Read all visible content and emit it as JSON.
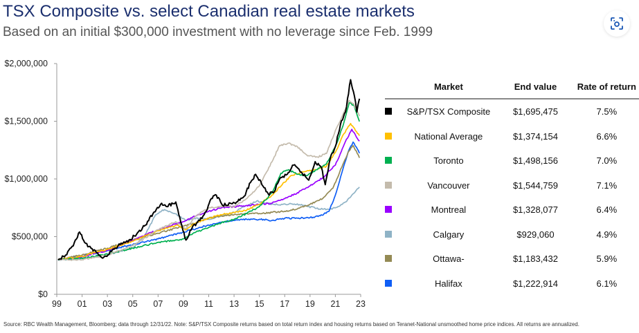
{
  "header": {
    "title": "TSX Composite vs. select Canadian real estate markets",
    "subtitle": "Based on an initial $300,000 investment with no leverage since Feb. 1999"
  },
  "lens_button": {
    "icon": "visual-search-icon"
  },
  "table": {
    "headers": [
      "Market",
      "End value",
      "Rate of return"
    ],
    "rows": [
      {
        "market": "S&P/TSX Composite",
        "end_value": "$1,695,475",
        "rate": "7.5%",
        "color": "#000000"
      },
      {
        "market": "National Average",
        "end_value": "$1,374,154",
        "rate": "6.6%",
        "color": "#ffc000"
      },
      {
        "market": "Toronto",
        "end_value": "$1,498,156",
        "rate": "7.0%",
        "color": "#00b050"
      },
      {
        "market": "Vancouver",
        "end_value": "$1,544,759",
        "rate": "7.1%",
        "color": "#c4bbac"
      },
      {
        "market": "Montreal",
        "end_value": "$1,328,077",
        "rate": "6.4%",
        "color": "#9900ff"
      },
      {
        "market": "Calgary",
        "end_value": "$929,060",
        "rate": "4.9%",
        "color": "#8fb3c6"
      },
      {
        "market": "Ottawa-",
        "end_value": "$1,183,432",
        "rate": "5.9%",
        "color": "#948a54"
      },
      {
        "market": "Halifax",
        "end_value": "$1,222,914",
        "rate": "6.1%",
        "color": "#0f5ef5"
      }
    ]
  },
  "footer": {
    "source": "Source: RBC Wealth Management, Bloomberg; data through 12/31/22. Note: S&P/TSX Composite returns based on total return index and housing returns based on Teranet-National unsmoothed home price indices. All returns are annualized."
  },
  "chart_data": {
    "type": "line",
    "title": "TSX Composite vs. select Canadian real estate markets",
    "subtitle": "Based on an initial $300,000 investment with no leverage since Feb. 1999",
    "xlabel": "",
    "ylabel": "",
    "xlim": [
      1999,
      2023
    ],
    "ylim": [
      0,
      2000000
    ],
    "x_ticks": [
      "99",
      "01",
      "03",
      "05",
      "07",
      "09",
      "11",
      "13",
      "15",
      "17",
      "19",
      "21",
      "23"
    ],
    "x_tick_values": [
      1999,
      2001,
      2003,
      2005,
      2007,
      2009,
      2011,
      2013,
      2015,
      2017,
      2019,
      2021,
      2023
    ],
    "y_ticks": [
      "$0",
      "$500,000",
      "$1,000,000",
      "$1,500,000",
      "$2,000,000"
    ],
    "y_tick_values": [
      0,
      500000,
      1000000,
      1500000,
      2000000
    ],
    "grid": false,
    "legend": "right-table",
    "series": [
      {
        "name": "Calgary",
        "color": "#8fb3c6",
        "x": [
          1999.1,
          2001,
          2003,
          2005,
          2006,
          2006.8,
          2007.5,
          2008.3,
          2009.2,
          2010,
          2011,
          2012,
          2013,
          2014,
          2014.8,
          2015.5,
          2016.5,
          2017.5,
          2018.5,
          2019.5,
          2020.5,
          2021.2,
          2021.8,
          2022.3,
          2022.9
        ],
        "y": [
          300000,
          310000,
          345000,
          400000,
          520000,
          690000,
          735000,
          700000,
          640000,
          660000,
          650000,
          680000,
          710000,
          770000,
          810000,
          790000,
          775000,
          785000,
          770000,
          745000,
          735000,
          760000,
          800000,
          860000,
          929060
        ]
      },
      {
        "name": "Halifax",
        "color": "#0f5ef5",
        "x": [
          1999.1,
          2001,
          2003,
          2005,
          2007,
          2009,
          2010,
          2011,
          2012,
          2013,
          2014,
          2015,
          2016,
          2017,
          2018,
          2019,
          2019.8,
          2020.5,
          2021,
          2021.5,
          2022,
          2022.4,
          2022.9
        ],
        "y": [
          300000,
          330000,
          380000,
          430000,
          480000,
          540000,
          570000,
          600000,
          625000,
          640000,
          650000,
          650000,
          640000,
          660000,
          660000,
          665000,
          680000,
          720000,
          860000,
          1050000,
          1230000,
          1320000,
          1222914
        ]
      },
      {
        "name": "Ottawa-",
        "color": "#948a54",
        "x": [
          1999.1,
          2001,
          2003,
          2005,
          2007,
          2009,
          2010,
          2011,
          2012,
          2013,
          2014,
          2015,
          2016,
          2017,
          2018,
          2019,
          2020,
          2020.8,
          2021.5,
          2022,
          2022.4,
          2022.9
        ],
        "y": [
          300000,
          340000,
          400000,
          470000,
          530000,
          590000,
          620000,
          660000,
          680000,
          690000,
          700000,
          700000,
          710000,
          720000,
          740000,
          780000,
          830000,
          920000,
          1100000,
          1230000,
          1290000,
          1183432
        ]
      },
      {
        "name": "Montreal",
        "color": "#9900ff",
        "x": [
          1999.1,
          2001,
          2003,
          2005,
          2007,
          2009,
          2010,
          2011,
          2012,
          2013,
          2014,
          2015,
          2016,
          2017,
          2018,
          2019,
          2020,
          2021,
          2021.7,
          2022.3,
          2022.9
        ],
        "y": [
          300000,
          325000,
          380000,
          470000,
          560000,
          630000,
          680000,
          720000,
          750000,
          760000,
          770000,
          780000,
          790000,
          830000,
          880000,
          940000,
          1010000,
          1120000,
          1300000,
          1430000,
          1328077
        ]
      },
      {
        "name": "National Average",
        "color": "#ffc000",
        "x": [
          1999.1,
          2001,
          2003,
          2005,
          2007,
          2008.5,
          2009.2,
          2010,
          2011,
          2012,
          2013,
          2014,
          2015,
          2016,
          2016.8,
          2017.5,
          2018.5,
          2019.5,
          2020.3,
          2021,
          2021.6,
          2022.2,
          2022.9
        ],
        "y": [
          300000,
          330000,
          390000,
          460000,
          550000,
          600000,
          560000,
          620000,
          660000,
          690000,
          710000,
          730000,
          780000,
          860000,
          950000,
          1030000,
          1060000,
          1080000,
          1110000,
          1230000,
          1380000,
          1480000,
          1374154
        ]
      },
      {
        "name": "Toronto",
        "color": "#00b050",
        "x": [
          1999.1,
          2001,
          2003,
          2005,
          2007,
          2009,
          2010,
          2011,
          2012,
          2013,
          2014,
          2015,
          2016,
          2016.7,
          2017.3,
          2018,
          2018.8,
          2019.5,
          2020.3,
          2021,
          2021.6,
          2022.1,
          2022.5,
          2022.9
        ],
        "y": [
          300000,
          310000,
          350000,
          400000,
          450000,
          480000,
          540000,
          580000,
          620000,
          650000,
          700000,
          760000,
          880000,
          1050000,
          1080000,
          1040000,
          1030000,
          1080000,
          1130000,
          1280000,
          1460000,
          1660000,
          1630000,
          1498156
        ]
      },
      {
        "name": "Vancouver",
        "color": "#c4bbac",
        "x": [
          1999.1,
          2001,
          2002,
          2003,
          2005,
          2007,
          2008.4,
          2009.2,
          2010,
          2011,
          2012,
          2013,
          2014,
          2015,
          2016,
          2016.6,
          2017.3,
          2018,
          2018.8,
          2019.6,
          2020.3,
          2021,
          2021.6,
          2022.1,
          2022.5,
          2022.9
        ],
        "y": [
          300000,
          300000,
          320000,
          340000,
          420000,
          560000,
          630000,
          570000,
          680000,
          750000,
          760000,
          760000,
          830000,
          940000,
          1150000,
          1290000,
          1310000,
          1280000,
          1200000,
          1190000,
          1220000,
          1420000,
          1560000,
          1680000,
          1640000,
          1544759
        ]
      },
      {
        "name": "S&P/TSX Composite",
        "color": "#000000",
        "x": [
          1999.1,
          1999.7,
          2000.3,
          2000.8,
          2001.2,
          2001.7,
          2002.3,
          2002.7,
          2003.3,
          2004,
          2004.7,
          2005.3,
          2006,
          2006.6,
          2007.2,
          2007.7,
          2008.4,
          2008.8,
          2009.2,
          2009.7,
          2010.3,
          2010.8,
          2011.2,
          2011.6,
          2012.1,
          2012.7,
          2013.2,
          2013.8,
          2014.3,
          2014.7,
          2015.2,
          2015.7,
          2016.1,
          2016.6,
          2017.2,
          2017.7,
          2018.3,
          2018.9,
          2019.4,
          2019.9,
          2020.2,
          2020.6,
          2021,
          2021.4,
          2021.8,
          2022.2,
          2022.5,
          2022.7,
          2022.9
        ],
        "y": [
          300000,
          340000,
          420000,
          540000,
          450000,
          400000,
          340000,
          320000,
          370000,
          430000,
          470000,
          520000,
          600000,
          700000,
          780000,
          760000,
          800000,
          620000,
          470000,
          580000,
          640000,
          720000,
          830000,
          860000,
          770000,
          790000,
          800000,
          850000,
          970000,
          1040000,
          950000,
          870000,
          880000,
          1000000,
          1040000,
          1120000,
          1060000,
          990000,
          1150000,
          1100000,
          950000,
          1180000,
          1280000,
          1470000,
          1580000,
          1860000,
          1720000,
          1580000,
          1695475
        ]
      }
    ]
  }
}
